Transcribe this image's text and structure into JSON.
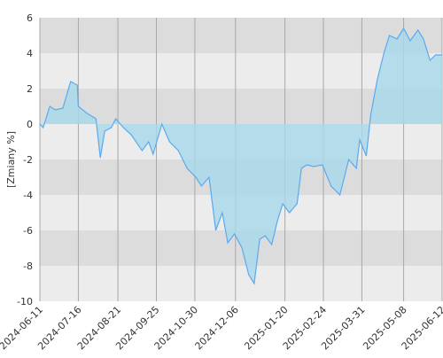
{
  "chart_data": {
    "type": "area",
    "y_label": "[Zmiany %]",
    "x": [
      "2024-06-11",
      "2024-06-14",
      "2024-06-20",
      "2024-06-25",
      "2024-07-02",
      "2024-07-09",
      "2024-07-15",
      "2024-07-16",
      "2024-07-24",
      "2024-08-01",
      "2024-08-05",
      "2024-08-09",
      "2024-08-15",
      "2024-08-19",
      "2024-08-26",
      "2024-09-02",
      "2024-09-12",
      "2024-09-18",
      "2024-09-22",
      "2024-09-30",
      "2024-10-07",
      "2024-10-15",
      "2024-10-23",
      "2024-10-31",
      "2024-11-05",
      "2024-11-12",
      "2024-11-18",
      "2024-11-24",
      "2024-11-29",
      "2024-12-05",
      "2024-12-12",
      "2024-12-18",
      "2024-12-23",
      "2024-12-28",
      "2025-01-02",
      "2025-01-08",
      "2025-01-13",
      "2025-01-18",
      "2025-01-24",
      "2025-01-31",
      "2025-02-04",
      "2025-02-09",
      "2025-02-15",
      "2025-02-23",
      "2025-03-03",
      "2025-03-11",
      "2025-03-19",
      "2025-03-26",
      "2025-03-29",
      "2025-04-04",
      "2025-04-08",
      "2025-04-14",
      "2025-04-20",
      "2025-04-25",
      "2025-05-02",
      "2025-05-08",
      "2025-05-14",
      "2025-05-21",
      "2025-05-26",
      "2025-06-01",
      "2025-06-06",
      "2025-06-12"
    ],
    "values": [
      0,
      -0.2,
      1.0,
      0.8,
      0.9,
      2.4,
      2.2,
      1.0,
      0.6,
      0.3,
      -1.9,
      -0.4,
      -0.2,
      0.3,
      -0.2,
      -0.6,
      -1.5,
      -1.0,
      -1.7,
      0,
      -1.0,
      -1.5,
      -2.5,
      -3.0,
      -3.5,
      -3.0,
      -6.0,
      -5.0,
      -6.7,
      -6.2,
      -7.0,
      -8.5,
      -9.0,
      -6.5,
      -6.3,
      -6.8,
      -5.5,
      -4.5,
      -5.0,
      -4.5,
      -2.5,
      -2.3,
      -2.4,
      -2.3,
      -3.5,
      -4.0,
      -2.0,
      -2.5,
      -0.9,
      -1.8,
      0.5,
      2.5,
      4.0,
      5.0,
      4.8,
      5.4,
      4.7,
      5.3,
      4.8,
      3.6,
      3.9,
      3.9
    ],
    "color": "#5aaaf0",
    "fill": "#a8d8ea",
    "xlim": [
      "2024-06-11",
      "2025-06-12"
    ],
    "xticks": [
      "2024-06-11",
      "2024-07-16",
      "2024-08-21",
      "2024-09-25",
      "2024-10-30",
      "2024-12-06",
      "2025-01-20",
      "2025-02-24",
      "2025-03-31",
      "2025-05-08",
      "2025-06-12"
    ],
    "ylim": [
      -10,
      6
    ],
    "yticks": [
      -10,
      -8,
      -6,
      -4,
      -2,
      0,
      2,
      4,
      6
    ],
    "grid": true
  }
}
